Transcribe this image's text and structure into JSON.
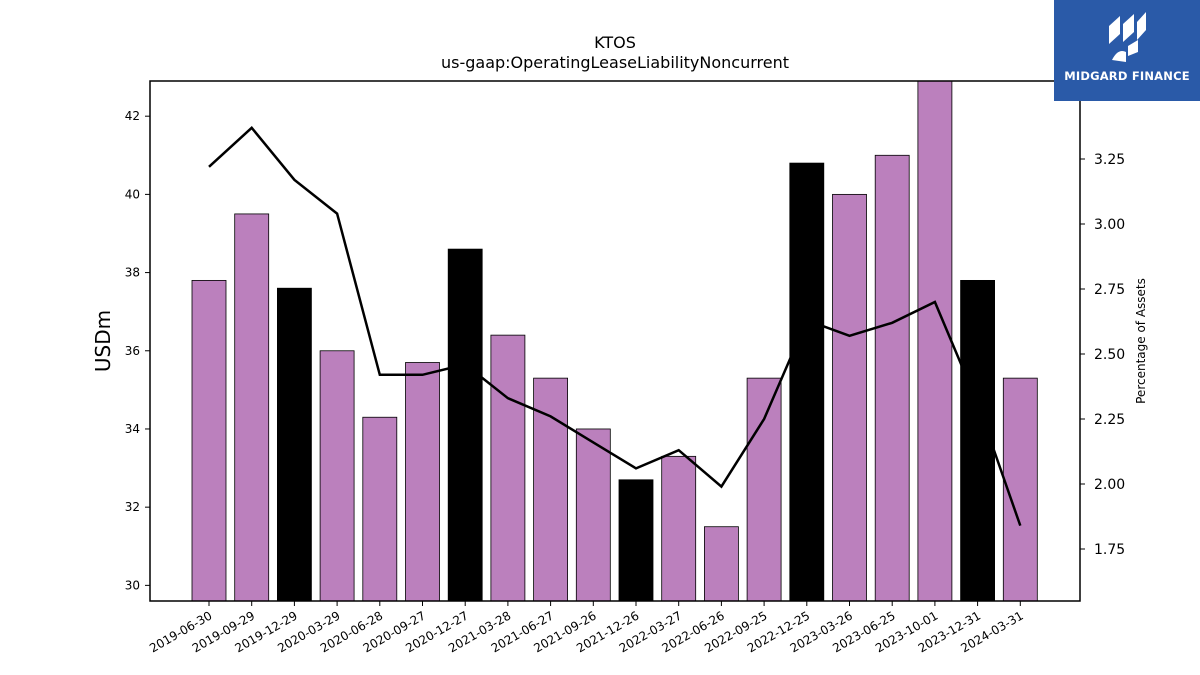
{
  "brand": {
    "name": "MIDGARD FINANCE",
    "bg_color": "#2a5aa8",
    "icon": "midgard-logo-icon"
  },
  "chart_data": {
    "type": "bar",
    "title": "KTOS",
    "subtitle": "us-gaap:OperatingLeaseLiabilityNoncurrent",
    "ylabel": "USDm",
    "y2label": "Percentage of Assets",
    "ylim": [
      29.6,
      42.9
    ],
    "y2lim": [
      1.55,
      3.55
    ],
    "yticks": [
      30,
      32,
      34,
      36,
      38,
      40,
      42
    ],
    "y2ticks": [
      1.75,
      2.0,
      2.25,
      2.5,
      2.75,
      3.0,
      3.25
    ],
    "categories": [
      "2019-06-30",
      "2019-09-29",
      "2019-12-29",
      "2020-03-29",
      "2020-06-28",
      "2020-09-27",
      "2020-12-27",
      "2021-03-28",
      "2021-06-27",
      "2021-09-26",
      "2021-12-26",
      "2022-03-27",
      "2022-06-26",
      "2022-09-25",
      "2022-12-25",
      "2023-03-26",
      "2023-06-25",
      "2023-10-01",
      "2023-12-31",
      "2024-03-31"
    ],
    "series": [
      {
        "kind": "bar",
        "axis": "left",
        "values": [
          37.8,
          39.5,
          37.6,
          36.0,
          34.3,
          35.7,
          38.6,
          36.4,
          35.3,
          34.0,
          32.7,
          33.3,
          31.5,
          35.3,
          40.8,
          40.0,
          41.0,
          43.0,
          37.8,
          35.3
        ],
        "fiscal_year_end": [
          false,
          false,
          true,
          false,
          false,
          false,
          true,
          false,
          false,
          false,
          true,
          false,
          false,
          false,
          true,
          false,
          false,
          false,
          true,
          false
        ]
      },
      {
        "kind": "line",
        "axis": "right",
        "values": [
          3.22,
          3.37,
          3.17,
          3.04,
          2.42,
          2.42,
          2.46,
          2.33,
          2.26,
          2.16,
          2.06,
          2.13,
          1.99,
          2.25,
          2.63,
          2.57,
          2.62,
          2.7,
          2.31,
          1.84
        ]
      }
    ],
    "colors": {
      "bar": "#bb80bd",
      "bar_year_end": "#000000",
      "line": "#000000"
    },
    "grid": false
  }
}
